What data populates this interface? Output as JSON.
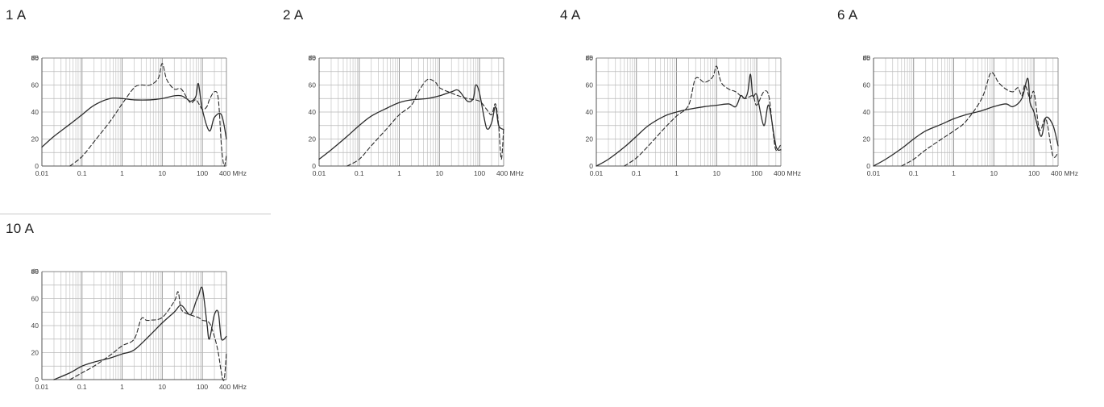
{
  "chart_data": [
    {
      "type": "line",
      "title": "1 A",
      "ylabel": "dB",
      "x_unit": "MHz",
      "x_scale": "log",
      "xlim": [
        0.01,
        400
      ],
      "ylim": [
        0,
        80
      ],
      "x_ticks": [
        0.01,
        0.1,
        1,
        10,
        100,
        400
      ],
      "x_tick_labels": [
        "0.01",
        "0.1",
        "1",
        "10",
        "100",
        "400 MHz"
      ],
      "y_ticks": [
        0,
        20,
        40,
        60,
        80
      ],
      "y_tick_labels": [
        "0",
        "20",
        "40",
        "60",
        "80"
      ],
      "grid": true,
      "series": [
        {
          "style": "solid",
          "x": [
            0.01,
            0.02,
            0.05,
            0.1,
            0.2,
            0.5,
            1,
            2,
            5,
            10,
            20,
            30,
            40,
            50,
            60,
            70,
            80,
            100,
            150,
            200,
            300,
            400
          ],
          "y": [
            14,
            22,
            31,
            38,
            45,
            50,
            50,
            49,
            49,
            50,
            52,
            52,
            50,
            48,
            49,
            52,
            61,
            42,
            26,
            36,
            38,
            20
          ]
        },
        {
          "style": "dashed",
          "x": [
            0.05,
            0.1,
            0.2,
            0.5,
            1,
            2,
            3,
            5,
            8,
            10,
            13,
            20,
            30,
            50,
            70,
            100,
            130,
            150,
            200,
            250,
            300,
            350,
            400
          ],
          "y": [
            0,
            7,
            18,
            33,
            46,
            58,
            60,
            60,
            65,
            76,
            64,
            57,
            57,
            47,
            49,
            42,
            44,
            49,
            55,
            50,
            15,
            0,
            8
          ]
        }
      ]
    },
    {
      "type": "line",
      "title": "2 A",
      "ylabel": "dB",
      "x_unit": "MHz",
      "x_scale": "log",
      "xlim": [
        0.01,
        400
      ],
      "ylim": [
        0,
        80
      ],
      "x_ticks": [
        0.01,
        0.1,
        1,
        10,
        100,
        400
      ],
      "x_tick_labels": [
        "0.01",
        "0.1",
        "1",
        "10",
        "100",
        "400 MHz"
      ],
      "y_ticks": [
        0,
        20,
        40,
        60,
        80
      ],
      "y_tick_labels": [
        "0",
        "20",
        "40",
        "60",
        "80"
      ],
      "grid": true,
      "series": [
        {
          "style": "solid",
          "x": [
            0.01,
            0.02,
            0.05,
            0.1,
            0.2,
            0.5,
            1,
            2,
            5,
            10,
            20,
            30,
            50,
            70,
            80,
            100,
            150,
            200,
            250,
            300,
            400
          ],
          "y": [
            5,
            12,
            22,
            30,
            37,
            43,
            47,
            49,
            50,
            52,
            55,
            56,
            48,
            50,
            60,
            54,
            28,
            32,
            44,
            30,
            27
          ]
        },
        {
          "style": "dashed",
          "x": [
            0.05,
            0.1,
            0.2,
            0.5,
            1,
            2,
            3,
            5,
            8,
            10,
            20,
            30,
            50,
            100,
            150,
            200,
            250,
            300,
            350,
            400
          ],
          "y": [
            0,
            5,
            15,
            28,
            38,
            45,
            55,
            64,
            62,
            58,
            54,
            52,
            50,
            48,
            42,
            38,
            46,
            30,
            5,
            28
          ]
        }
      ]
    },
    {
      "type": "line",
      "title": "4 A",
      "ylabel": "dB",
      "x_unit": "MHz",
      "x_scale": "log",
      "xlim": [
        0.01,
        400
      ],
      "ylim": [
        0,
        80
      ],
      "x_ticks": [
        0.01,
        0.1,
        1,
        10,
        100,
        400
      ],
      "x_tick_labels": [
        "0.01",
        "0.1",
        "1",
        "10",
        "100",
        "400 MHz"
      ],
      "y_ticks": [
        0,
        20,
        40,
        60,
        80
      ],
      "y_tick_labels": [
        "0",
        "20",
        "40",
        "60",
        "80"
      ],
      "grid": true,
      "series": [
        {
          "style": "solid",
          "x": [
            0.01,
            0.02,
            0.05,
            0.1,
            0.2,
            0.5,
            1,
            2,
            5,
            10,
            20,
            30,
            40,
            50,
            60,
            70,
            80,
            100,
            150,
            200,
            300,
            400
          ],
          "y": [
            0,
            5,
            14,
            22,
            30,
            37,
            40,
            42,
            44,
            45,
            46,
            44,
            52,
            50,
            55,
            68,
            52,
            53,
            30,
            45,
            15,
            12
          ]
        },
        {
          "style": "dashed",
          "x": [
            0.05,
            0.1,
            0.2,
            0.5,
            1,
            2,
            3,
            5,
            8,
            10,
            13,
            20,
            30,
            50,
            80,
            100,
            150,
            200,
            250,
            300,
            400
          ],
          "y": [
            0,
            6,
            15,
            28,
            37,
            45,
            65,
            62,
            66,
            74,
            62,
            57,
            55,
            50,
            52,
            45,
            55,
            52,
            28,
            12,
            16
          ]
        }
      ]
    },
    {
      "type": "line",
      "title": "6 A",
      "ylabel": "dB",
      "x_unit": "MHz",
      "x_scale": "log",
      "xlim": [
        0.01,
        400
      ],
      "ylim": [
        0,
        80
      ],
      "x_ticks": [
        0.01,
        0.1,
        1,
        10,
        100,
        400
      ],
      "x_tick_labels": [
        "0.01",
        "0.1",
        "1",
        "10",
        "100",
        "400 MHz"
      ],
      "y_ticks": [
        0,
        20,
        40,
        60,
        80
      ],
      "y_tick_labels": [
        "0",
        "20",
        "40",
        "60",
        "80"
      ],
      "grid": true,
      "series": [
        {
          "style": "solid",
          "x": [
            0.01,
            0.02,
            0.05,
            0.1,
            0.2,
            0.5,
            1,
            2,
            5,
            10,
            20,
            30,
            50,
            70,
            80,
            100,
            150,
            200,
            300,
            400
          ],
          "y": [
            0,
            5,
            13,
            20,
            26,
            31,
            35,
            38,
            41,
            44,
            46,
            44,
            50,
            65,
            47,
            40,
            22,
            36,
            30,
            15
          ]
        },
        {
          "style": "dashed",
          "x": [
            0.05,
            0.1,
            0.2,
            0.5,
            1,
            2,
            5,
            8,
            10,
            13,
            20,
            30,
            40,
            50,
            60,
            80,
            100,
            130,
            150,
            200,
            300,
            400
          ],
          "y": [
            0,
            5,
            12,
            20,
            26,
            33,
            50,
            68,
            68,
            62,
            57,
            55,
            58,
            52,
            60,
            50,
            55,
            30,
            27,
            35,
            7,
            10
          ]
        }
      ]
    },
    {
      "type": "line",
      "title": "10 A",
      "ylabel": "dB",
      "x_unit": "MHz",
      "x_scale": "log",
      "xlim": [
        0.01,
        400
      ],
      "ylim": [
        0,
        80
      ],
      "x_ticks": [
        0.01,
        0.1,
        1,
        10,
        100,
        400
      ],
      "x_tick_labels": [
        "0.01",
        "0.1",
        "1",
        "10",
        "100",
        "400 MHz"
      ],
      "y_ticks": [
        0,
        20,
        40,
        60,
        80
      ],
      "y_tick_labels": [
        "0",
        "20",
        "40",
        "60",
        "80"
      ],
      "grid": true,
      "series": [
        {
          "style": "solid",
          "x": [
            0.02,
            0.05,
            0.1,
            0.2,
            0.5,
            1,
            2,
            5,
            10,
            20,
            30,
            50,
            70,
            80,
            100,
            130,
            150,
            200,
            250,
            300,
            400
          ],
          "y": [
            0,
            5,
            10,
            13,
            16,
            19,
            22,
            33,
            42,
            50,
            55,
            48,
            58,
            62,
            68,
            42,
            30,
            48,
            50,
            30,
            32
          ]
        },
        {
          "style": "dashed",
          "x": [
            0.05,
            0.1,
            0.2,
            0.5,
            1,
            2,
            3,
            4,
            5,
            10,
            20,
            25,
            30,
            50,
            80,
            100,
            150,
            200,
            250,
            300,
            350,
            400
          ],
          "y": [
            0,
            5,
            10,
            18,
            25,
            30,
            45,
            44,
            44,
            46,
            58,
            65,
            52,
            48,
            46,
            44,
            42,
            32,
            20,
            5,
            0,
            20
          ]
        }
      ]
    }
  ]
}
